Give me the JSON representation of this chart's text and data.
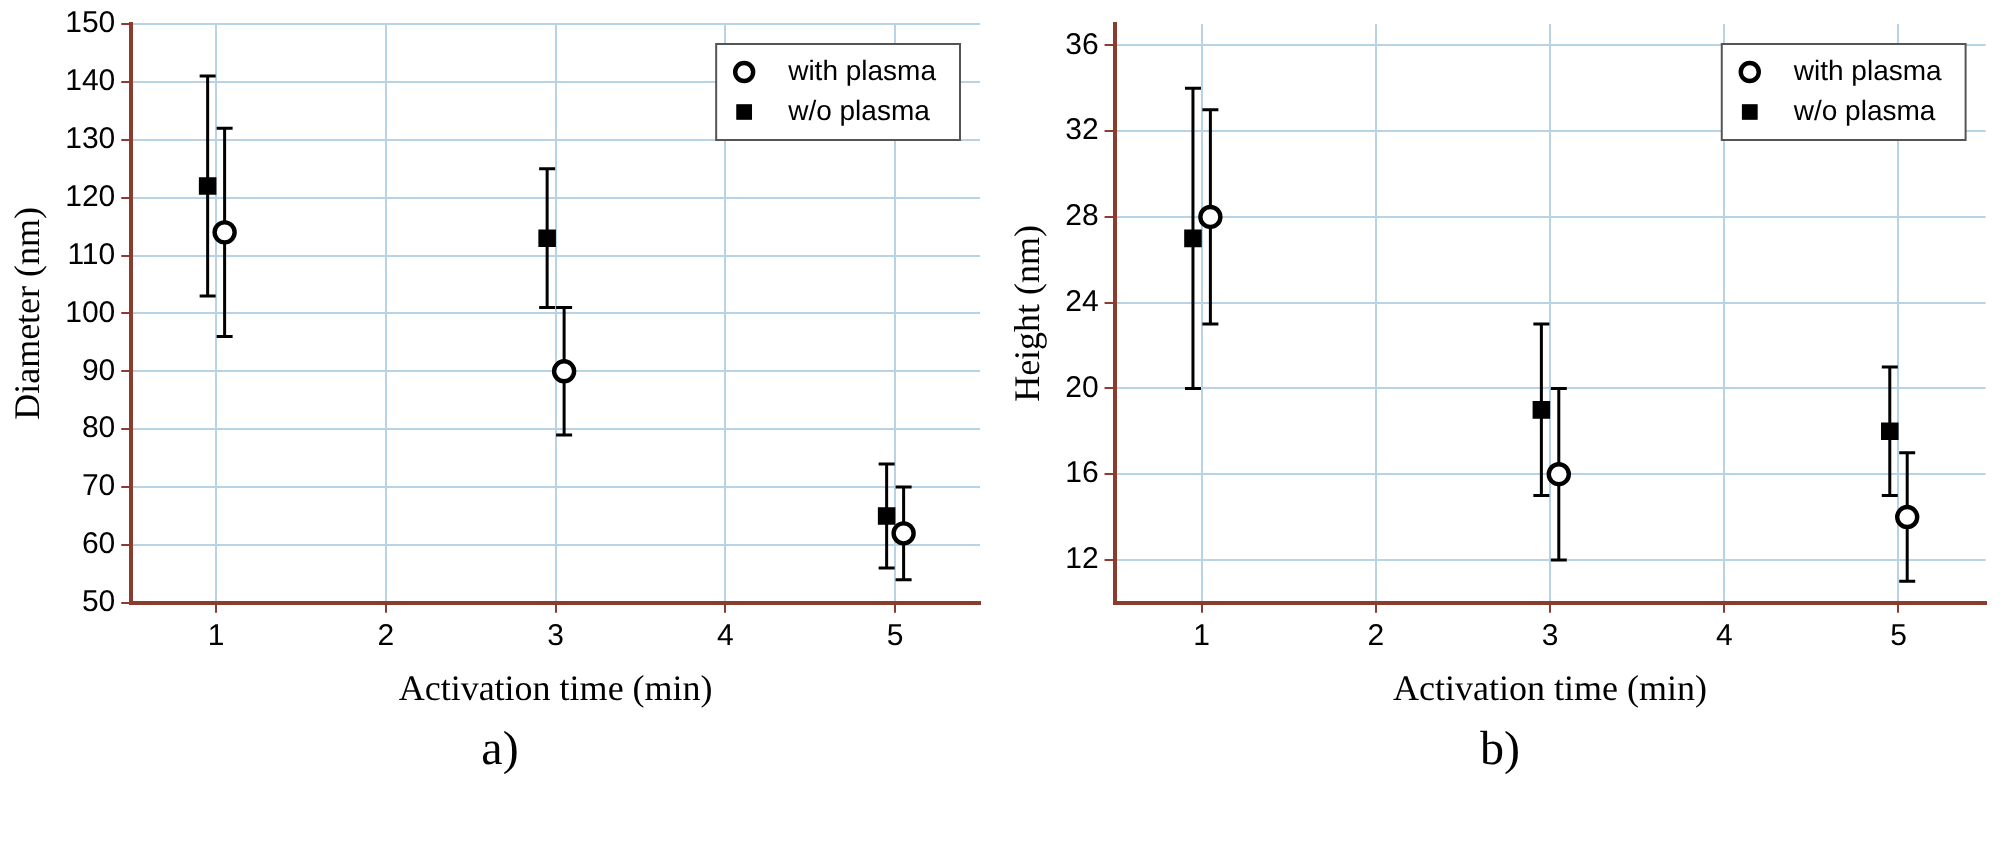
{
  "chart_data": [
    {
      "type": "scatter",
      "xlabel": "Activation time (min)",
      "ylabel": "Diameter (nm)",
      "xlim": [
        0.5,
        5.5
      ],
      "xticks": [
        1,
        2,
        3,
        4,
        5
      ],
      "ylim": [
        50,
        150
      ],
      "yticks": [
        50,
        60,
        70,
        80,
        90,
        100,
        110,
        120,
        130,
        140,
        150
      ],
      "grid": true,
      "legend": "top right",
      "annotations": [
        "a)"
      ],
      "series": [
        {
          "name": "with plasma",
          "color": "#000000",
          "marker": "circle",
          "x": [
            1.05,
            3.05,
            5.05
          ],
          "values": [
            114,
            90,
            62
          ],
          "errors": [
            18,
            11,
            8
          ]
        },
        {
          "name": "w/o plasma",
          "color": "#000000",
          "marker": "square",
          "x": [
            0.95,
            2.95,
            4.95
          ],
          "values": [
            122,
            113,
            65
          ],
          "errors": [
            19,
            12,
            9
          ]
        }
      ]
    },
    {
      "type": "scatter",
      "xlabel": "Activation time (min)",
      "ylabel": "Height (nm)",
      "xlim": [
        0.5,
        5.5
      ],
      "xticks": [
        1,
        2,
        3,
        4,
        5
      ],
      "ylim": [
        10,
        37
      ],
      "yticks": [
        12,
        16,
        20,
        24,
        28,
        32,
        36
      ],
      "grid": true,
      "legend": "top right",
      "annotations": [
        "b)"
      ],
      "series": [
        {
          "name": "with plasma",
          "color": "#000000",
          "marker": "circle",
          "x": [
            1.05,
            3.05,
            5.05
          ],
          "values": [
            28,
            16,
            14
          ],
          "errors": [
            5,
            4,
            3
          ]
        },
        {
          "name": "w/o plasma",
          "color": "#000000",
          "marker": "square",
          "x": [
            0.95,
            2.95,
            4.95
          ],
          "values": [
            27,
            19,
            18
          ],
          "errors": [
            7,
            4,
            3
          ]
        }
      ]
    }
  ]
}
